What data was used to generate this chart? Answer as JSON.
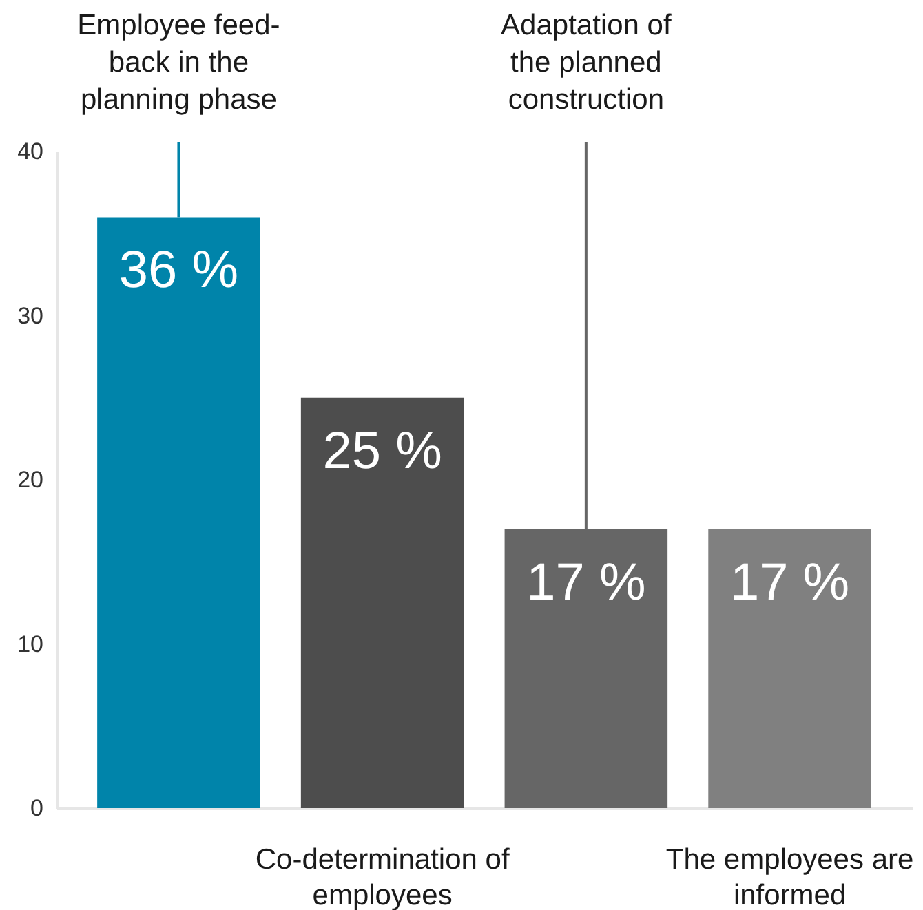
{
  "chart_data": {
    "type": "bar",
    "categories": [
      "Employee feed-back in the planning phase",
      "Co-determination of employees",
      "Adaptation of the planned construction",
      "The employees are informed"
    ],
    "values": [
      36,
      25,
      17,
      17
    ],
    "colors": [
      "#0084aa",
      "#4d4d4d",
      "#666666",
      "#808080"
    ],
    "value_labels": [
      "36 %",
      "25 %",
      "17 %",
      "17 %"
    ],
    "ylim": [
      0,
      40
    ],
    "yticks": [
      0,
      10,
      20,
      30,
      40
    ]
  }
}
